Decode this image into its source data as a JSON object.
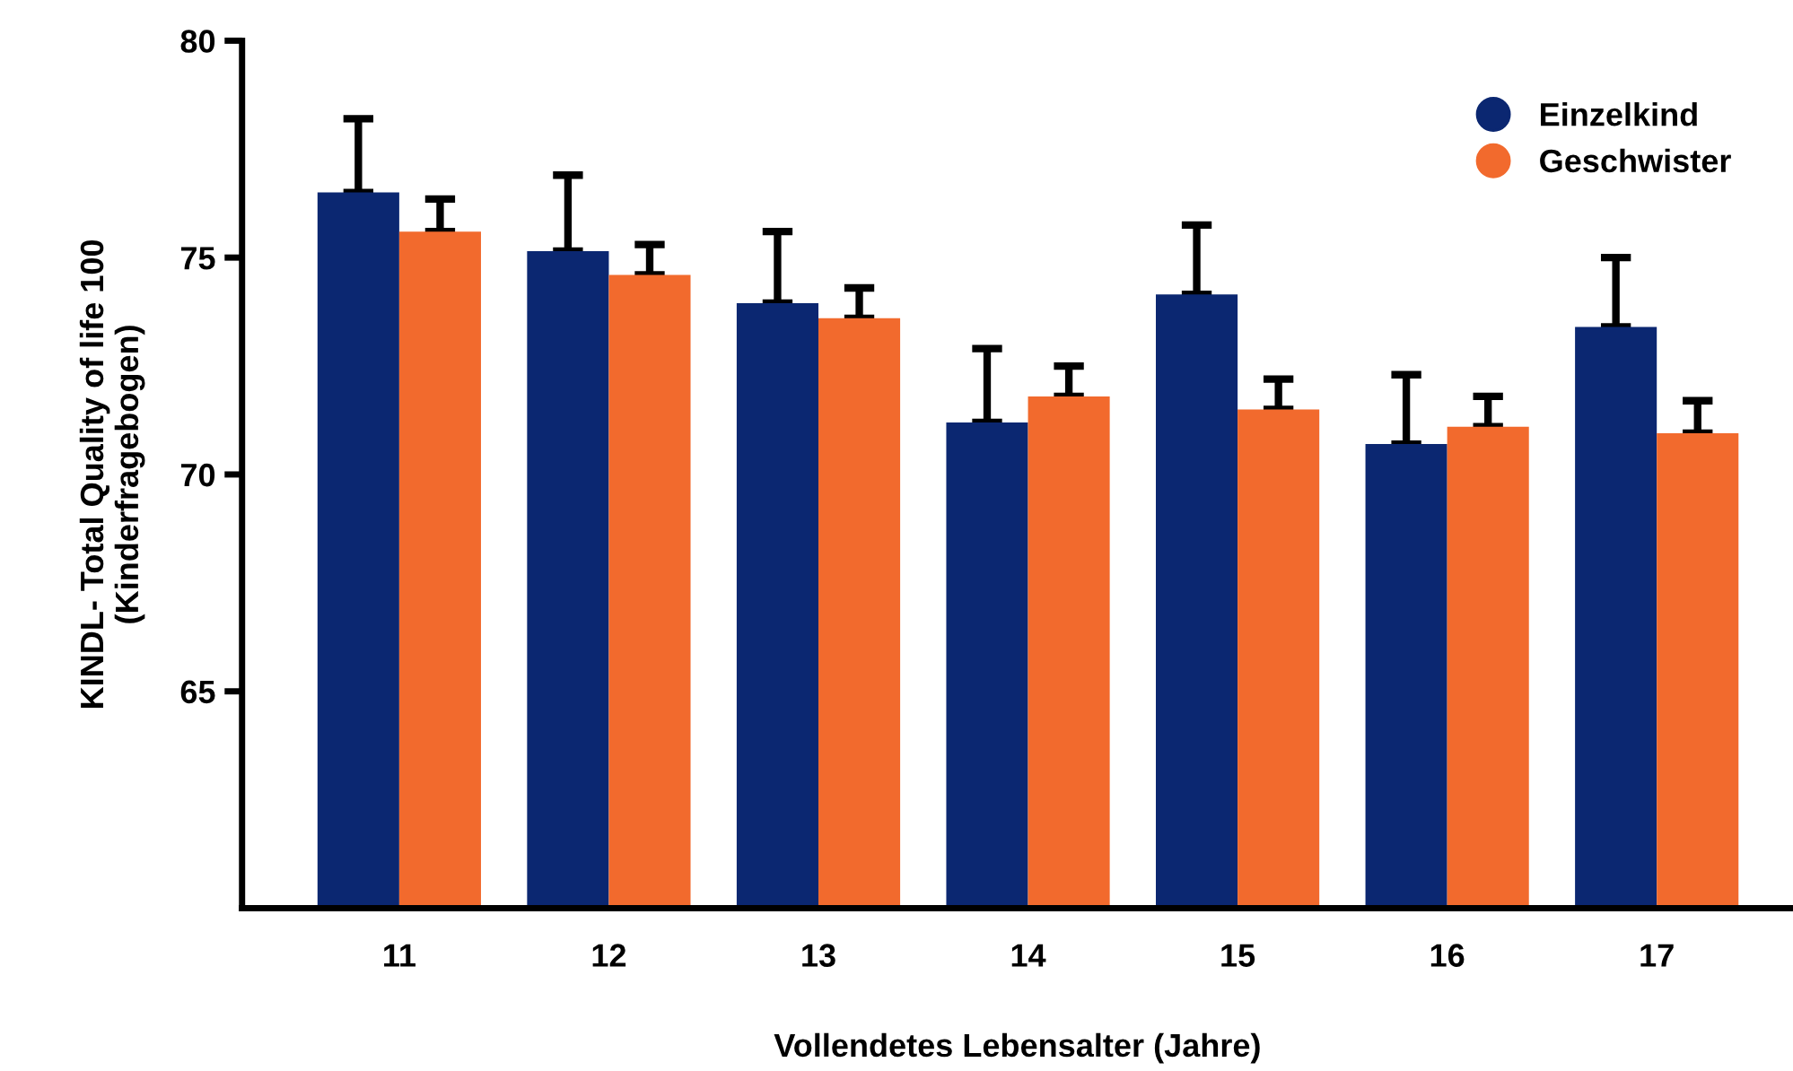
{
  "chart_data": {
    "type": "bar",
    "xlabel": "Vollendetes Lebensalter (Jahre)",
    "ylabel": "KINDL- Total Quality of life 100\n(Kinderfragebogen)",
    "categories": [
      "11",
      "12",
      "13",
      "14",
      "15",
      "16",
      "17"
    ],
    "series": [
      {
        "name": "Einzelkind",
        "color": "#0b2771",
        "values": [
          76.5,
          75.15,
          73.95,
          71.2,
          74.15,
          70.7,
          73.4
        ],
        "errors": [
          [
            76.5,
            78.2
          ],
          [
            75.15,
            76.9
          ],
          [
            73.95,
            75.6
          ],
          [
            71.2,
            72.9
          ],
          [
            74.15,
            75.75
          ],
          [
            70.7,
            72.3
          ],
          [
            73.4,
            75.0
          ]
        ]
      },
      {
        "name": "Geschwister",
        "color": "#f26a2d",
        "values": [
          75.6,
          74.6,
          73.6,
          71.8,
          71.5,
          71.1,
          70.95
        ],
        "errors": [
          [
            75.6,
            76.35
          ],
          [
            74.6,
            75.3
          ],
          [
            73.6,
            74.3
          ],
          [
            71.8,
            72.5
          ],
          [
            71.5,
            72.2
          ],
          [
            71.1,
            71.8
          ],
          [
            70.95,
            71.7
          ]
        ]
      }
    ],
    "ylim": [
      60,
      80
    ],
    "yticks": [
      65,
      70,
      75,
      80
    ],
    "grid": false,
    "legend": "top right"
  }
}
